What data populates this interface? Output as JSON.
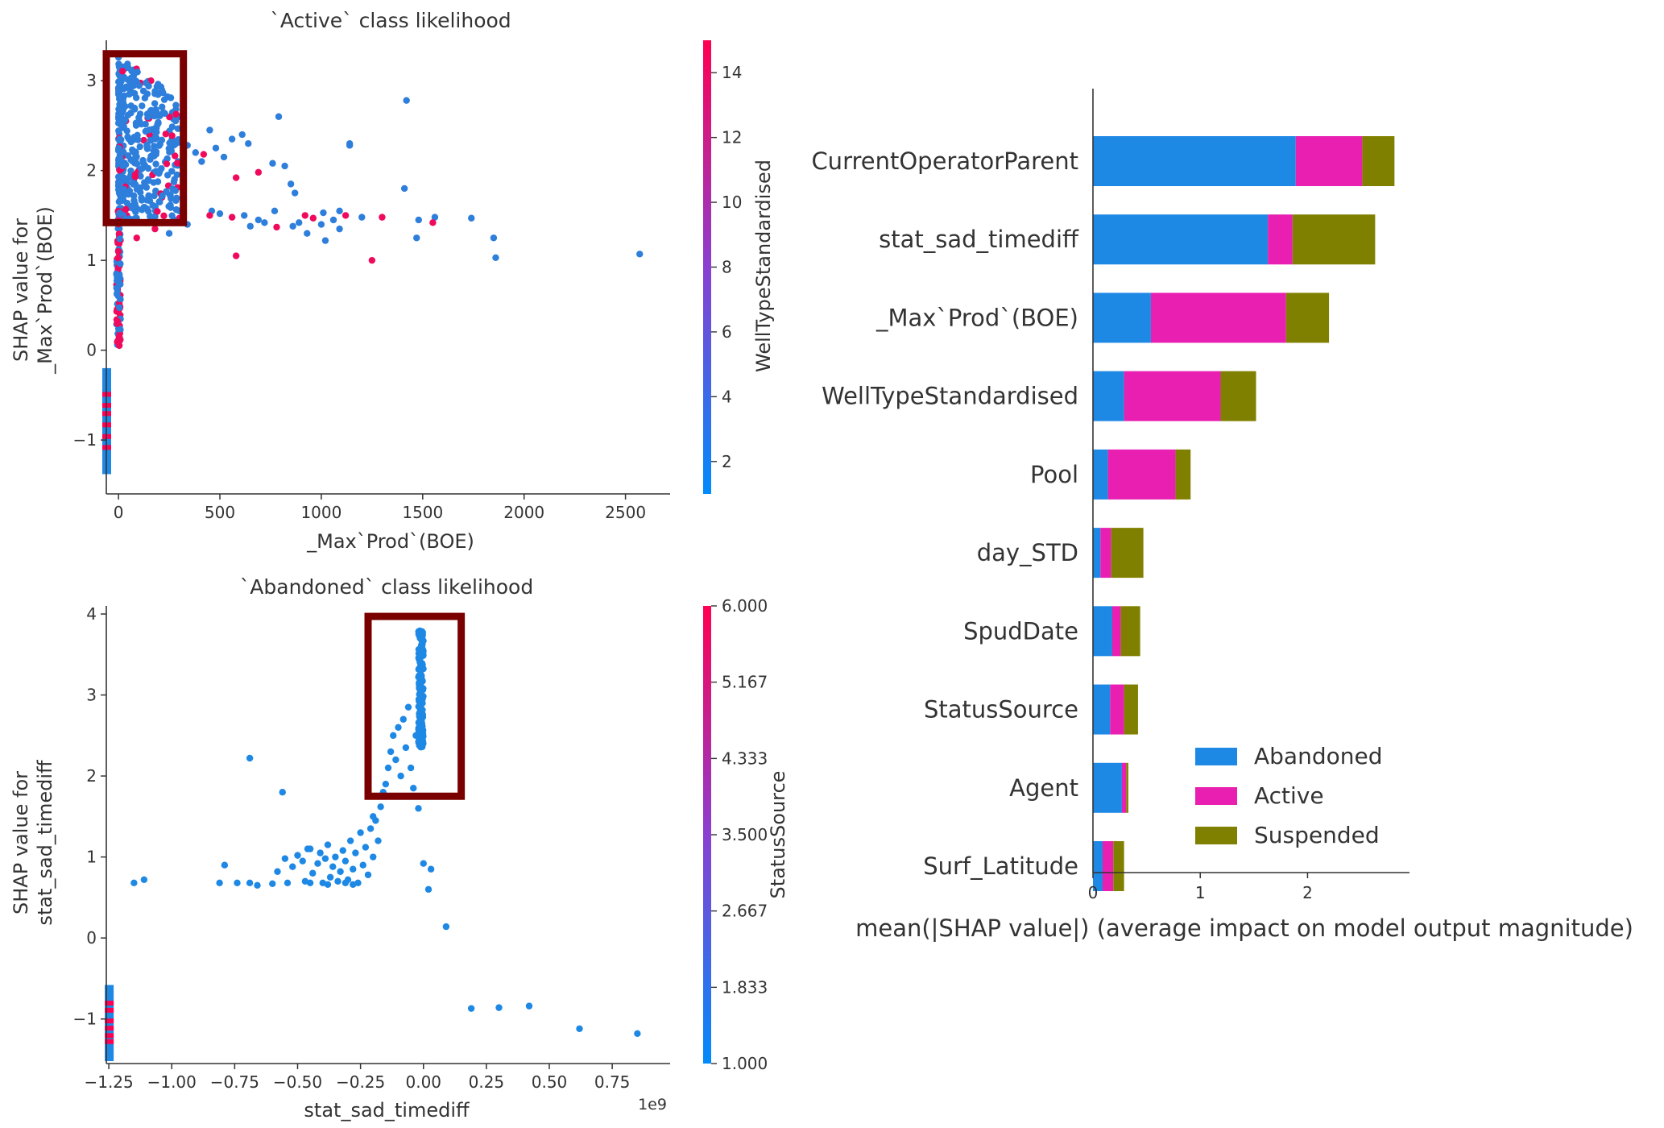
{
  "colors": {
    "abandoned": "#1e88e5",
    "active": "#e81fb0",
    "suspended": "#808000",
    "highlight_box": "#7a0000",
    "shap_low": "#008bfb",
    "shap_high": "#ff0052",
    "axis": "#333333"
  },
  "chart_data": [
    {
      "id": "active-dependence",
      "type": "scatter",
      "title": "`Active` class likelihood",
      "xlabel": "_Max`Prod`(BOE)",
      "ylabel": [
        "SHAP value for",
        "_Max`Prod`(BOE)"
      ],
      "xlim": [
        -60,
        2720
      ],
      "ylim": [
        -1.6,
        3.45
      ],
      "xticks": [
        0,
        500,
        1000,
        1500,
        2000,
        2500
      ],
      "xtick_labels": [
        "0",
        "500",
        "1000",
        "1500",
        "2000",
        "2500"
      ],
      "yticks": [
        -1,
        0,
        1,
        2,
        3
      ],
      "ytick_labels": [
        "−1",
        "0",
        "1",
        "2",
        "3"
      ],
      "colorbar": {
        "label": "WellTypeStandardised",
        "range": [
          1,
          15
        ],
        "ticks": [
          2,
          4,
          6,
          8,
          10,
          12,
          14
        ],
        "tick_labels": [
          "2",
          "4",
          "6",
          "8",
          "10",
          "12",
          "14"
        ]
      },
      "highlight_box": {
        "x": [
          -60,
          320
        ],
        "y": [
          1.42,
          3.3
        ]
      },
      "points": [
        {
          "x": 1420,
          "y": 2.78,
          "c": 2
        },
        {
          "x": 790,
          "y": 2.6,
          "c": 2
        },
        {
          "x": 1140,
          "y": 2.3,
          "c": 2
        },
        {
          "x": 1140,
          "y": 2.28,
          "c": 2
        },
        {
          "x": 450,
          "y": 2.45,
          "c": 2
        },
        {
          "x": 610,
          "y": 2.4,
          "c": 2
        },
        {
          "x": 560,
          "y": 2.35,
          "c": 2
        },
        {
          "x": 640,
          "y": 2.3,
          "c": 2
        },
        {
          "x": 480,
          "y": 2.25,
          "c": 2
        },
        {
          "x": 410,
          "y": 2.1,
          "c": 2
        },
        {
          "x": 520,
          "y": 2.15,
          "c": 2
        },
        {
          "x": 760,
          "y": 2.08,
          "c": 2
        },
        {
          "x": 820,
          "y": 2.05,
          "c": 2
        },
        {
          "x": 380,
          "y": 2.2,
          "c": 2
        },
        {
          "x": 340,
          "y": 2.28,
          "c": 2
        },
        {
          "x": 690,
          "y": 1.98,
          "c": 14
        },
        {
          "x": 580,
          "y": 1.92,
          "c": 14
        },
        {
          "x": 420,
          "y": 2.18,
          "c": 14
        },
        {
          "x": 850,
          "y": 1.85,
          "c": 2
        },
        {
          "x": 870,
          "y": 1.75,
          "c": 2
        },
        {
          "x": 1410,
          "y": 1.8,
          "c": 2
        },
        {
          "x": 1560,
          "y": 1.48,
          "c": 2
        },
        {
          "x": 1740,
          "y": 1.47,
          "c": 2
        },
        {
          "x": 1850,
          "y": 1.25,
          "c": 2
        },
        {
          "x": 1860,
          "y": 1.03,
          "c": 2
        },
        {
          "x": 2570,
          "y": 1.07,
          "c": 2
        },
        {
          "x": 1200,
          "y": 1.48,
          "c": 2
        },
        {
          "x": 1300,
          "y": 1.48,
          "c": 14
        },
        {
          "x": 1480,
          "y": 1.45,
          "c": 2
        },
        {
          "x": 1470,
          "y": 1.25,
          "c": 2
        },
        {
          "x": 1550,
          "y": 1.42,
          "c": 14
        },
        {
          "x": 1250,
          "y": 1.0,
          "c": 14
        },
        {
          "x": 1090,
          "y": 1.35,
          "c": 2
        },
        {
          "x": 1010,
          "y": 1.53,
          "c": 2
        },
        {
          "x": 1060,
          "y": 1.45,
          "c": 2
        },
        {
          "x": 920,
          "y": 1.5,
          "c": 14
        },
        {
          "x": 960,
          "y": 1.47,
          "c": 14
        },
        {
          "x": 890,
          "y": 1.42,
          "c": 2
        },
        {
          "x": 930,
          "y": 1.3,
          "c": 2
        },
        {
          "x": 860,
          "y": 1.38,
          "c": 2
        },
        {
          "x": 780,
          "y": 1.37,
          "c": 14
        },
        {
          "x": 720,
          "y": 1.42,
          "c": 2
        },
        {
          "x": 650,
          "y": 1.38,
          "c": 2
        },
        {
          "x": 620,
          "y": 1.5,
          "c": 2
        },
        {
          "x": 560,
          "y": 1.48,
          "c": 14
        },
        {
          "x": 500,
          "y": 1.52,
          "c": 2
        },
        {
          "x": 460,
          "y": 1.55,
          "c": 2
        },
        {
          "x": 450,
          "y": 1.5,
          "c": 14
        },
        {
          "x": 580,
          "y": 1.05,
          "c": 14
        },
        {
          "x": 1090,
          "y": 1.55,
          "c": 2
        },
        {
          "x": 1120,
          "y": 1.5,
          "c": 14
        },
        {
          "x": 1020,
          "y": 1.22,
          "c": 2
        },
        {
          "x": 1000,
          "y": 1.4,
          "c": 2
        },
        {
          "x": 770,
          "y": 1.55,
          "c": 2
        },
        {
          "x": 690,
          "y": 1.45,
          "c": 2
        },
        {
          "x": 340,
          "y": 1.4,
          "c": 2
        },
        {
          "x": 300,
          "y": 1.55,
          "c": 2
        },
        {
          "x": 250,
          "y": 1.3,
          "c": 2
        },
        {
          "x": 180,
          "y": 1.35,
          "c": 14
        },
        {
          "x": 90,
          "y": 1.25,
          "c": 14
        }
      ],
      "filled_strip": {
        "x": -60,
        "y_range": [
          -1.38,
          -0.2
        ],
        "colors": [
          "#1e88e5",
          "#ff0052"
        ]
      }
    },
    {
      "id": "abandoned-dependence",
      "type": "scatter",
      "title": "`Abandoned` class likelihood",
      "xlabel": "stat_sad_timediff",
      "x_offset_label": "1e9",
      "ylabel": [
        "SHAP value for",
        "stat_sad_timediff"
      ],
      "xlim": [
        -1.26,
        0.98
      ],
      "ylim": [
        -1.55,
        4.1
      ],
      "xticks": [
        -1.25,
        -1.0,
        -0.75,
        -0.5,
        -0.25,
        0.0,
        0.25,
        0.5,
        0.75
      ],
      "xtick_labels": [
        "−1.25",
        "−1.00",
        "−0.75",
        "−0.50",
        "−0.25",
        "0.00",
        "0.25",
        "0.50",
        "0.75"
      ],
      "yticks": [
        -1,
        0,
        1,
        2,
        3,
        4
      ],
      "ytick_labels": [
        "−1",
        "0",
        "1",
        "2",
        "3",
        "4"
      ],
      "colorbar": {
        "label": "StatusSource",
        "range": [
          1.0,
          6.0
        ],
        "ticks": [
          1.0,
          1.833,
          2.667,
          3.5,
          4.333,
          5.167,
          6.0
        ],
        "tick_labels": [
          "1.000",
          "1.833",
          "2.667",
          "3.500",
          "4.333",
          "5.167",
          "6.000"
        ]
      },
      "highlight_box": {
        "x": [
          -0.22,
          0.15
        ],
        "y": [
          1.75,
          3.97
        ]
      },
      "points": [
        {
          "x": -0.69,
          "y": 2.22
        },
        {
          "x": -0.56,
          "y": 1.8
        },
        {
          "x": -1.15,
          "y": 0.68
        },
        {
          "x": -1.11,
          "y": 0.72
        },
        {
          "x": -0.81,
          "y": 0.68
        },
        {
          "x": -0.79,
          "y": 0.9
        },
        {
          "x": -0.74,
          "y": 0.68
        },
        {
          "x": -0.69,
          "y": 0.68
        },
        {
          "x": -0.66,
          "y": 0.65
        },
        {
          "x": -0.6,
          "y": 0.67
        },
        {
          "x": -0.58,
          "y": 0.82
        },
        {
          "x": -0.54,
          "y": 0.68
        },
        {
          "x": -0.52,
          "y": 0.88
        },
        {
          "x": -0.5,
          "y": 1.02
        },
        {
          "x": -0.48,
          "y": 0.95
        },
        {
          "x": -0.47,
          "y": 0.7
        },
        {
          "x": -0.45,
          "y": 1.1
        },
        {
          "x": -0.44,
          "y": 0.8
        },
        {
          "x": -0.42,
          "y": 0.92
        },
        {
          "x": -0.41,
          "y": 1.05
        },
        {
          "x": -0.4,
          "y": 0.68
        },
        {
          "x": -0.39,
          "y": 0.98
        },
        {
          "x": -0.38,
          "y": 1.15
        },
        {
          "x": -0.37,
          "y": 0.75
        },
        {
          "x": -0.36,
          "y": 0.88
        },
        {
          "x": -0.35,
          "y": 1.0
        },
        {
          "x": -0.34,
          "y": 0.7
        },
        {
          "x": -0.33,
          "y": 0.82
        },
        {
          "x": -0.32,
          "y": 1.08
        },
        {
          "x": -0.31,
          "y": 0.95
        },
        {
          "x": -0.3,
          "y": 0.72
        },
        {
          "x": -0.29,
          "y": 1.2
        },
        {
          "x": -0.28,
          "y": 0.85
        },
        {
          "x": -0.27,
          "y": 1.05
        },
        {
          "x": -0.26,
          "y": 0.68
        },
        {
          "x": -0.25,
          "y": 1.3
        },
        {
          "x": -0.24,
          "y": 0.9
        },
        {
          "x": -0.23,
          "y": 1.12
        },
        {
          "x": -0.22,
          "y": 0.78
        },
        {
          "x": -0.21,
          "y": 1.35
        },
        {
          "x": -0.2,
          "y": 1.0
        },
        {
          "x": -0.19,
          "y": 1.45
        },
        {
          "x": -0.18,
          "y": 1.2
        },
        {
          "x": -0.17,
          "y": 1.62
        },
        {
          "x": -0.16,
          "y": 1.8
        },
        {
          "x": -0.15,
          "y": 1.9
        },
        {
          "x": -0.14,
          "y": 2.1
        },
        {
          "x": -0.13,
          "y": 2.3
        },
        {
          "x": -0.12,
          "y": 2.5
        },
        {
          "x": -0.11,
          "y": 2.2
        },
        {
          "x": -0.1,
          "y": 2.6
        },
        {
          "x": -0.09,
          "y": 2.0
        },
        {
          "x": -0.08,
          "y": 2.7
        },
        {
          "x": -0.07,
          "y": 2.35
        },
        {
          "x": -0.06,
          "y": 2.85
        },
        {
          "x": -0.05,
          "y": 2.1
        },
        {
          "x": -0.04,
          "y": 1.85
        },
        {
          "x": -0.03,
          "y": 2.5
        },
        {
          "x": -0.02,
          "y": 1.6
        },
        {
          "x": 0.0,
          "y": 0.92
        },
        {
          "x": 0.03,
          "y": 0.85
        },
        {
          "x": 0.02,
          "y": 0.6
        },
        {
          "x": 0.09,
          "y": 0.14
        },
        {
          "x": 0.19,
          "y": -0.87
        },
        {
          "x": 0.3,
          "y": -0.86
        },
        {
          "x": 0.42,
          "y": -0.84
        },
        {
          "x": 0.62,
          "y": -1.12
        },
        {
          "x": 0.85,
          "y": -1.18
        },
        {
          "x": -0.45,
          "y": 0.68
        },
        {
          "x": -0.38,
          "y": 0.66
        },
        {
          "x": -0.31,
          "y": 0.68
        },
        {
          "x": -0.28,
          "y": 0.66
        },
        {
          "x": -0.55,
          "y": 0.98
        },
        {
          "x": -0.46,
          "y": 1.1
        },
        {
          "x": -0.2,
          "y": 1.5
        }
      ],
      "filled_strip": {
        "x": -1.25,
        "y_range": [
          -1.52,
          -0.58
        ],
        "colors": [
          "#1e88e5",
          "#ff0052"
        ]
      }
    },
    {
      "id": "summary-bar",
      "type": "bar",
      "orientation": "horizontal",
      "stacked": true,
      "xlabel": "mean(|SHAP value|) (average impact on model output magnitude)",
      "xlim": [
        0,
        2.95
      ],
      "xticks": [
        0,
        1,
        2
      ],
      "xtick_labels": [
        "0",
        "1",
        "2"
      ],
      "categories": [
        "CurrentOperatorParent",
        "stat_sad_timediff",
        "_Max`Prod`(BOE)",
        "WellTypeStandardised",
        "Pool",
        "day_STD",
        "SpudDate",
        "StatusSource",
        "Agent",
        "Surf_Latitude"
      ],
      "series": [
        {
          "name": "Abandoned",
          "values": [
            1.89,
            1.63,
            0.54,
            0.29,
            0.14,
            0.07,
            0.18,
            0.16,
            0.27,
            0.09
          ]
        },
        {
          "name": "Active",
          "values": [
            0.62,
            0.23,
            1.26,
            0.9,
            0.63,
            0.1,
            0.08,
            0.13,
            0.04,
            0.1
          ]
        },
        {
          "name": "Suspended",
          "values": [
            0.3,
            0.77,
            0.4,
            0.33,
            0.14,
            0.3,
            0.18,
            0.13,
            0.02,
            0.1
          ]
        }
      ],
      "legend": "lower-right"
    }
  ]
}
